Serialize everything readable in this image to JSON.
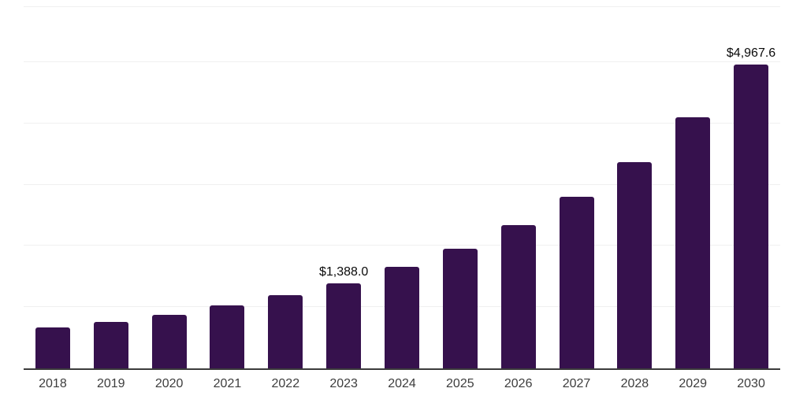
{
  "chart_data": {
    "type": "bar",
    "title": "",
    "subtitle": "",
    "xlabel": "",
    "ylabel": "",
    "categories": [
      "2018",
      "2019",
      "2020",
      "2021",
      "2022",
      "2023",
      "2024",
      "2025",
      "2026",
      "2027",
      "2028",
      "2029",
      "2030"
    ],
    "values": [
      675,
      765,
      880,
      1030,
      1190,
      1388.0,
      1655,
      1950,
      2335,
      2800,
      3370,
      4100,
      4967.6
    ],
    "bar_labels": [
      "",
      "",
      "",
      "",
      "",
      "$1,388.0",
      "",
      "",
      "",
      "",
      "",
      "",
      "$4,967.6"
    ],
    "ylim": [
      0,
      5900
    ],
    "gridline_values": [
      1000,
      2000,
      3000,
      4000,
      5000
    ],
    "grid": true,
    "legend": "none",
    "colors": {
      "background": "#ffffff",
      "bar": "#36114d",
      "gridline": "#f0f0f0",
      "axis_line": "#3c3c3c",
      "tick_label": "#3d3d3d",
      "data_label": "#0a0a0a"
    }
  }
}
